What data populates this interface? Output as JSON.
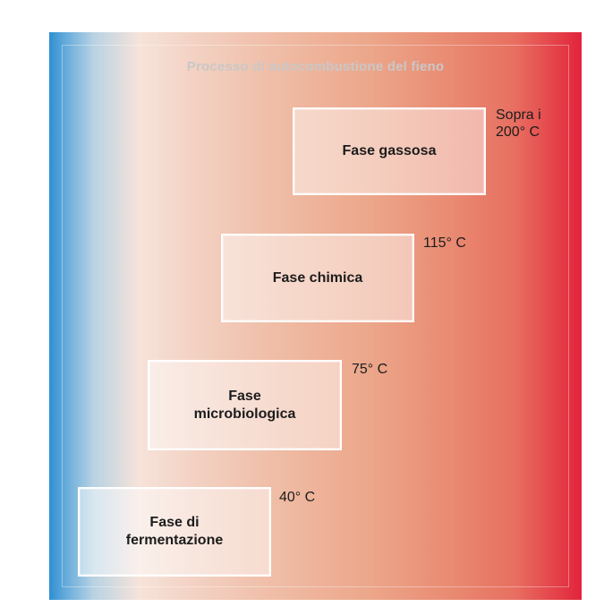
{
  "diagram": {
    "title": "Processo di autocombustione del fieno",
    "colors": {
      "cold": "#2f8fd2",
      "warm": "#efbba4",
      "hot": "#e2233b",
      "box_border": "#ffffff",
      "text": "#1c1c1c"
    },
    "phases": [
      {
        "label": "Fase gassosa",
        "temperature": "Sopra i\n200° C"
      },
      {
        "label": "Fase chimica",
        "temperature": "115° C"
      },
      {
        "label": "Fase\nmicrobiologica",
        "temperature": "75° C"
      },
      {
        "label": "Fase di\nfermentazione",
        "temperature": "40° C"
      }
    ]
  }
}
